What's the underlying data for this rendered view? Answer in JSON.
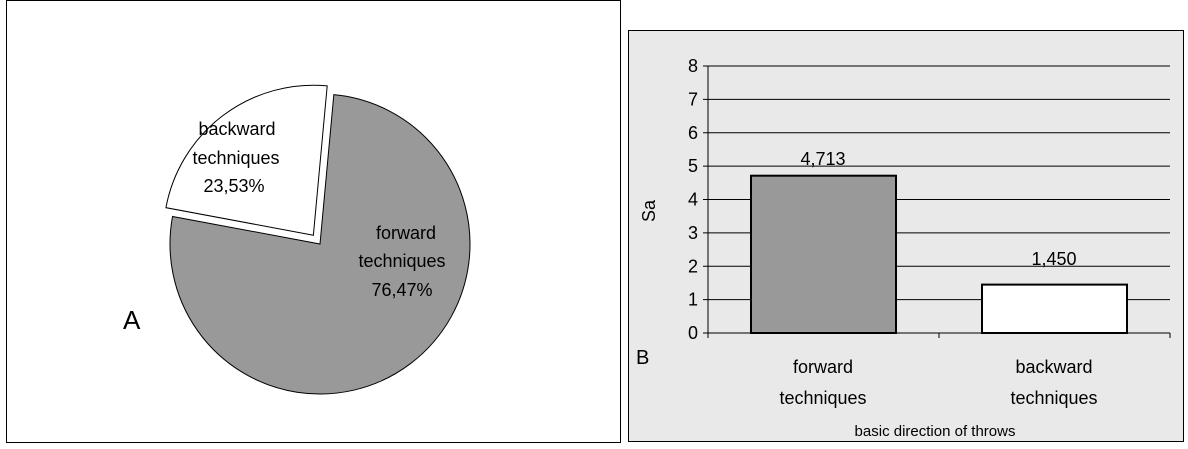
{
  "chart_data": [
    {
      "type": "pie",
      "panel_label": "A",
      "categories": [
        "forward techniques",
        "backward techniques"
      ],
      "values": [
        76.47,
        23.53
      ],
      "slice_labels": [
        {
          "line1": "forward",
          "line2": "techniques",
          "pct": "76,47%"
        },
        {
          "line1": "backward",
          "line2": "techniques",
          "pct": "23,53%"
        }
      ],
      "colors": [
        "#999999",
        "#ffffff"
      ],
      "exploded": "backward techniques"
    },
    {
      "type": "bar",
      "panel_label": "B",
      "categories": [
        "forward techniques",
        "backward techniques"
      ],
      "category_lines": [
        [
          "forward",
          "techniques"
        ],
        [
          "backward",
          "techniques"
        ]
      ],
      "values": [
        4.713,
        1.45
      ],
      "value_labels": [
        "4,713",
        "1,450"
      ],
      "colors": [
        "#999999",
        "#ffffff"
      ],
      "xlabel": "basic direction of throws",
      "ylabel": "Sa",
      "ylim": [
        0,
        8
      ],
      "yticks": [
        "0",
        "1",
        "2",
        "3",
        "4",
        "5",
        "6",
        "7",
        "8"
      ],
      "grid": true
    }
  ]
}
